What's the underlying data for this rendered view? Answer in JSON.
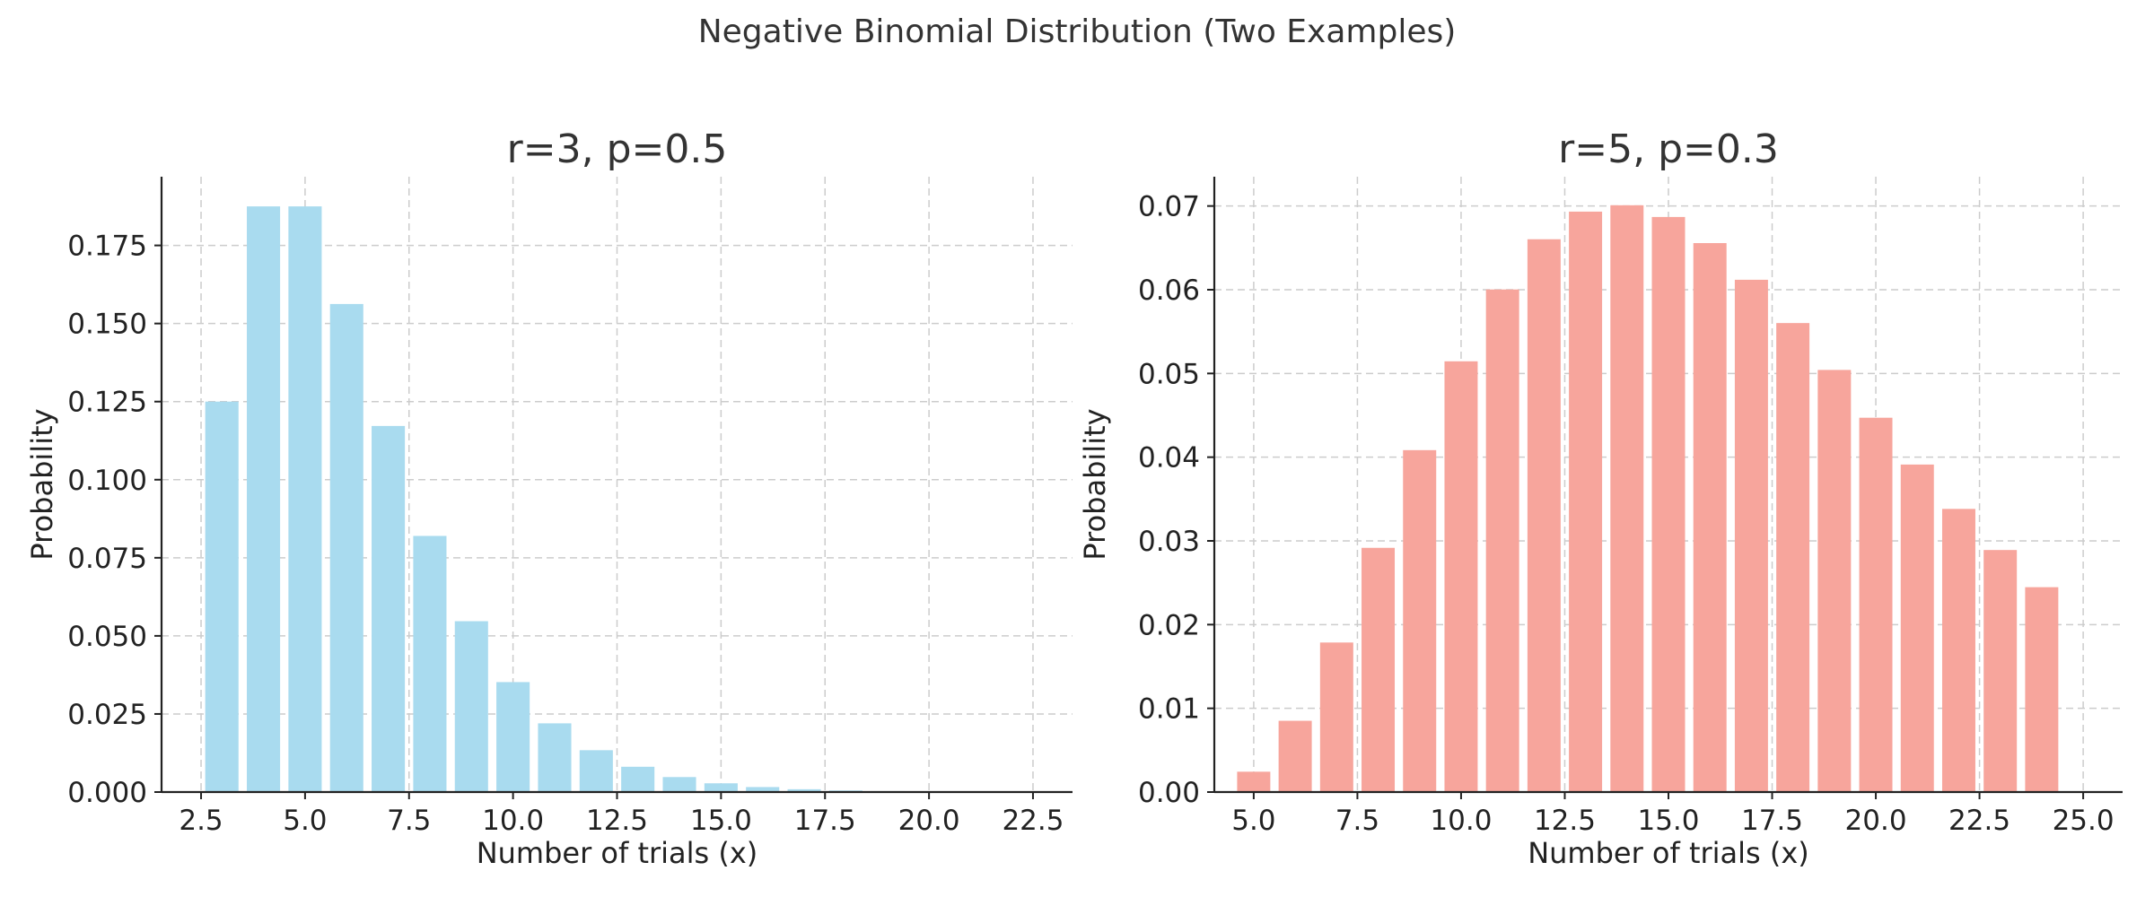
{
  "title": "Negative Binomial Distribution (Two Examples)",
  "colors": {
    "background": "#ffffff",
    "text": "#333333",
    "grid": "#cccccc",
    "series_left": "#a9dbef",
    "series_right": "#f7a59c"
  },
  "chart_data": [
    {
      "type": "bar",
      "title": "r=3, p=0.5",
      "xlabel": "Number of trials (x)",
      "ylabel": "Probability",
      "xlim": [
        1.55,
        23.45
      ],
      "ylim": [
        0,
        0.197
      ],
      "xticks": [
        2.5,
        5.0,
        7.5,
        10.0,
        12.5,
        15.0,
        17.5,
        20.0,
        22.5
      ],
      "xtick_labels": [
        "2.5",
        "5.0",
        "7.5",
        "10.0",
        "12.5",
        "15.0",
        "17.5",
        "20.0",
        "22.5"
      ],
      "yticks": [
        0.0,
        0.025,
        0.05,
        0.075,
        0.1,
        0.125,
        0.15,
        0.175
      ],
      "ytick_labels": [
        "0.000",
        "0.025",
        "0.050",
        "0.075",
        "0.100",
        "0.125",
        "0.150",
        "0.175"
      ],
      "grid": true,
      "color": "#a9dbef",
      "x": [
        3,
        4,
        5,
        6,
        7,
        8,
        9,
        10,
        11,
        12,
        13,
        14,
        15,
        16,
        17,
        18,
        19,
        20,
        21,
        22
      ],
      "values": [
        0.125,
        0.1875,
        0.1875,
        0.15625,
        0.1172,
        0.082,
        0.0547,
        0.0352,
        0.022,
        0.0134,
        0.0081,
        0.0048,
        0.0028,
        0.0016,
        0.0009,
        0.0005,
        0.0003,
        0.0002,
        0.0001,
        5e-05
      ]
    },
    {
      "type": "bar",
      "title": "r=5, p=0.3",
      "xlabel": "Number of trials (x)",
      "ylabel": "Probability",
      "xlim": [
        4.05,
        25.95
      ],
      "ylim": [
        0,
        0.0735
      ],
      "xticks": [
        5.0,
        7.5,
        10.0,
        12.5,
        15.0,
        17.5,
        20.0,
        22.5,
        25.0
      ],
      "xtick_labels": [
        "5.0",
        "7.5",
        "10.0",
        "12.5",
        "15.0",
        "17.5",
        "20.0",
        "22.5",
        "25.0"
      ],
      "yticks": [
        0.0,
        0.01,
        0.02,
        0.03,
        0.04,
        0.05,
        0.06,
        0.07
      ],
      "ytick_labels": [
        "0.00",
        "0.01",
        "0.02",
        "0.03",
        "0.04",
        "0.05",
        "0.06",
        "0.07"
      ],
      "grid": true,
      "color": "#f7a59c",
      "x": [
        5,
        6,
        7,
        8,
        9,
        10,
        11,
        12,
        13,
        14,
        15,
        16,
        17,
        18,
        19,
        20,
        21,
        22,
        23,
        24
      ],
      "values": [
        0.00243,
        0.00851,
        0.01786,
        0.02917,
        0.04084,
        0.05145,
        0.06003,
        0.06603,
        0.06933,
        0.07009,
        0.06869,
        0.06557,
        0.06119,
        0.05602,
        0.05042,
        0.04471,
        0.03912,
        0.03382,
        0.02891,
        0.02447
      ]
    }
  ]
}
